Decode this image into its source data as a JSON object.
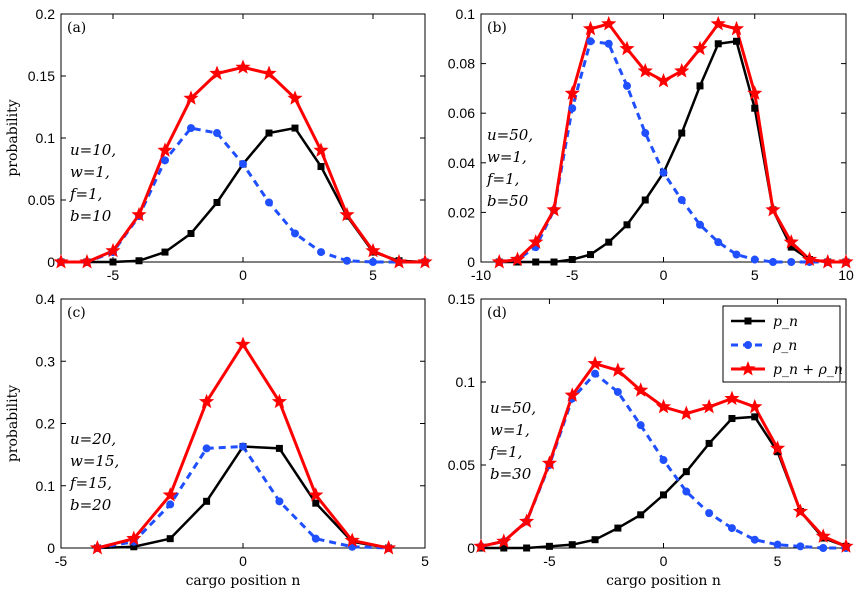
{
  "colors": {
    "p": "#000000",
    "rho": "#1f4fff",
    "sum": "#ff0000"
  },
  "legend": {
    "entries": [
      {
        "series": "p",
        "label": "p_n"
      },
      {
        "series": "rho",
        "label": "ρ_n"
      },
      {
        "series": "sum",
        "label": "p_n + ρ_n"
      }
    ]
  },
  "chart_data": [
    {
      "type": "line",
      "panel_label": "(a)",
      "ylabel": "probability",
      "xlabel": "",
      "xlim": [
        -7,
        7
      ],
      "ylim": [
        0,
        0.2
      ],
      "xticks": [
        -5,
        0,
        5
      ],
      "yticks": [
        0,
        0.05,
        0.1,
        0.15,
        0.2
      ],
      "ytick_labels": [
        "0",
        "0.05",
        "0.1",
        "0.15",
        "0.2"
      ],
      "params": [
        "u=10,",
        "w=1,",
        "f=1,",
        "b=10"
      ],
      "x": [
        -7,
        -6,
        -5,
        -4,
        -3,
        -2,
        -1,
        0,
        1,
        2,
        3,
        4,
        5,
        6,
        7
      ],
      "series": [
        {
          "key": "p",
          "name": "p_n",
          "values": [
            0,
            0,
            0,
            0.001,
            0.008,
            0.023,
            0.048,
            0.079,
            0.104,
            0.108,
            0.077,
            0.037,
            0.008,
            0.001,
            0
          ]
        },
        {
          "key": "rho",
          "name": "ρ_n",
          "values": [
            0,
            0,
            0.008,
            0.037,
            0.082,
            0.108,
            0.104,
            0.079,
            0.048,
            0.023,
            0.008,
            0.001,
            0,
            0,
            0
          ]
        },
        {
          "key": "sum",
          "name": "p_n + ρ_n",
          "values": [
            0,
            0,
            0.009,
            0.038,
            0.09,
            0.132,
            0.152,
            0.157,
            0.152,
            0.132,
            0.09,
            0.038,
            0.009,
            0,
            0
          ]
        }
      ]
    },
    {
      "type": "line",
      "panel_label": "(b)",
      "ylabel": "",
      "xlabel": "",
      "xlim": [
        -10,
        10
      ],
      "ylim": [
        0,
        0.1
      ],
      "xticks": [
        -10,
        -5,
        0,
        5,
        10
      ],
      "yticks": [
        0,
        0.02,
        0.04,
        0.06,
        0.08,
        0.1
      ],
      "ytick_labels": [
        "0",
        "0.02",
        "0.04",
        "0.06",
        "0.08",
        "0.1"
      ],
      "params": [
        "u=50,",
        "w=1,",
        "f=1,",
        "b=50"
      ],
      "x": [
        -9,
        -8,
        -7,
        -6,
        -5,
        -4,
        -3,
        -2,
        -1,
        0,
        1,
        2,
        3,
        4,
        5,
        6,
        7,
        8,
        9,
        10
      ],
      "series": [
        {
          "key": "p",
          "name": "p_n",
          "values": [
            0,
            0,
            0,
            0,
            0.001,
            0.003,
            0.008,
            0.015,
            0.025,
            0.036,
            0.052,
            0.071,
            0.088,
            0.089,
            0.062,
            0.021,
            0.006,
            0.001,
            0,
            0
          ]
        },
        {
          "key": "rho",
          "name": "ρ_n",
          "values": [
            0,
            0.001,
            0.006,
            0.021,
            0.062,
            0.089,
            0.088,
            0.071,
            0.052,
            0.036,
            0.025,
            0.015,
            0.008,
            0.003,
            0.001,
            0,
            0,
            0,
            0,
            0
          ]
        },
        {
          "key": "sum",
          "name": "p_n + ρ_n",
          "values": [
            0,
            0.001,
            0.008,
            0.021,
            0.068,
            0.094,
            0.096,
            0.086,
            0.077,
            0.073,
            0.077,
            0.086,
            0.096,
            0.094,
            0.068,
            0.021,
            0.008,
            0.001,
            0,
            0
          ]
        }
      ]
    },
    {
      "type": "line",
      "panel_label": "(c)",
      "ylabel": "probability",
      "xlabel": "cargo position n",
      "xlim": [
        -5,
        5
      ],
      "ylim": [
        0,
        0.4
      ],
      "xticks": [
        -5,
        0,
        5
      ],
      "yticks": [
        0,
        0.1,
        0.2,
        0.3,
        0.4
      ],
      "ytick_labels": [
        "0",
        "0.1",
        "0.2",
        "0.3",
        "0.4"
      ],
      "params": [
        "u=20,",
        "w=15,",
        "f=15,",
        "b=20"
      ],
      "x": [
        -4,
        -3,
        -2,
        -1,
        0,
        1,
        2,
        3,
        4
      ],
      "series": [
        {
          "key": "p",
          "name": "p_n",
          "values": [
            0,
            0.002,
            0.015,
            0.075,
            0.163,
            0.16,
            0.072,
            0.01,
            0
          ]
        },
        {
          "key": "rho",
          "name": "ρ_n",
          "values": [
            0,
            0.01,
            0.07,
            0.16,
            0.163,
            0.075,
            0.015,
            0.002,
            0
          ]
        },
        {
          "key": "sum",
          "name": "p_n + ρ_n",
          "values": [
            0,
            0.015,
            0.085,
            0.235,
            0.327,
            0.235,
            0.085,
            0.012,
            0
          ]
        }
      ]
    },
    {
      "type": "line",
      "panel_label": "(d)",
      "ylabel": "",
      "xlabel": "cargo position n",
      "xlim": [
        -8,
        8
      ],
      "ylim": [
        0,
        0.15
      ],
      "xticks": [
        -5,
        0,
        5
      ],
      "yticks": [
        0,
        0.05,
        0.1,
        0.15
      ],
      "ytick_labels": [
        "0",
        "0.05",
        "0.1",
        "0.15"
      ],
      "params": [
        "u=50,",
        "w=1,",
        "f=1,",
        "b=30"
      ],
      "x": [
        -8,
        -7,
        -6,
        -5,
        -4,
        -3,
        -2,
        -1,
        0,
        1,
        2,
        3,
        4,
        5,
        6,
        7,
        8
      ],
      "series": [
        {
          "key": "p",
          "name": "p_n",
          "values": [
            0,
            0,
            0,
            0.001,
            0.002,
            0.005,
            0.012,
            0.02,
            0.032,
            0.046,
            0.063,
            0.078,
            0.079,
            0.058,
            0.022,
            0.006,
            0.001
          ]
        },
        {
          "key": "rho",
          "name": "ρ_n",
          "values": [
            0.001,
            0.004,
            0.016,
            0.05,
            0.09,
            0.105,
            0.094,
            0.074,
            0.053,
            0.034,
            0.021,
            0.012,
            0.005,
            0.002,
            0.001,
            0,
            0
          ]
        },
        {
          "key": "sum",
          "name": "p_n + ρ_n",
          "values": [
            0.001,
            0.004,
            0.016,
            0.051,
            0.092,
            0.111,
            0.107,
            0.095,
            0.085,
            0.081,
            0.085,
            0.09,
            0.085,
            0.06,
            0.022,
            0.007,
            0.001
          ]
        }
      ]
    }
  ]
}
